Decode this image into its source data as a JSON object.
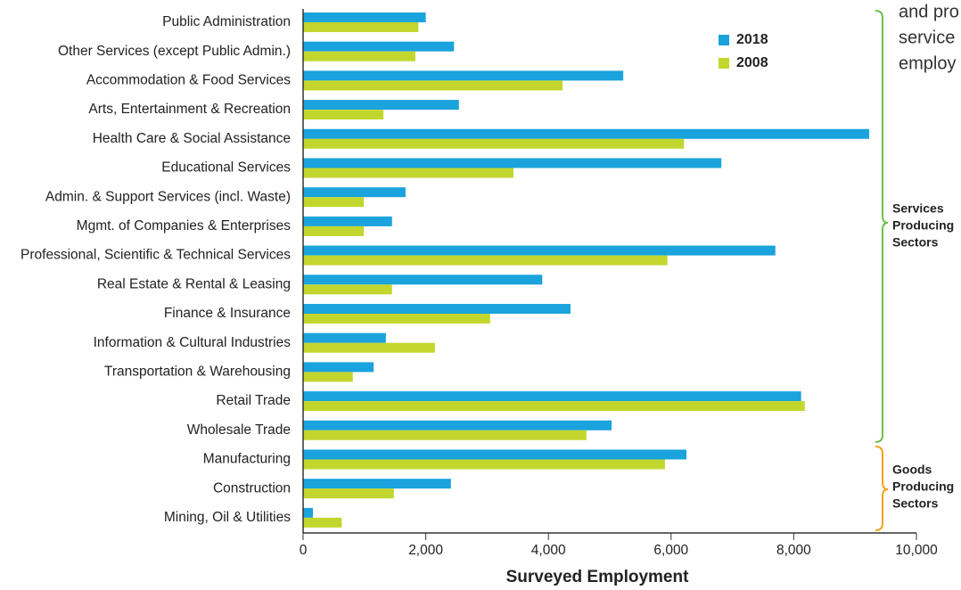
{
  "chart_data": {
    "type": "hbar",
    "categories": [
      "Public Administration",
      "Other Services (except Public Admin.)",
      "Accommodation & Food Services",
      "Arts, Entertainment & Recreation",
      "Health Care & Social Assistance",
      "Educational Services",
      "Admin. & Support Services (incl. Waste)",
      "Mgmt. of Companies & Enterprises",
      "Professional, Scientific & Technical Services",
      "Real Estate & Rental & Leasing",
      "Finance & Insurance",
      "Information & Cultural Industries",
      "Transportation & Warehousing",
      "Retail Trade",
      "Wholesale Trade",
      "Manufacturing",
      "Construction",
      "Mining, Oil & Utilities"
    ],
    "series": [
      {
        "name": "2018",
        "color": "#1aa3dc",
        "values": [
          2000,
          2460,
          5220,
          2540,
          9230,
          6820,
          1670,
          1450,
          7700,
          3900,
          4360,
          1350,
          1150,
          8120,
          5030,
          6250,
          2410,
          160
        ]
      },
      {
        "name": "2008",
        "color": "#c3d62d",
        "values": [
          1880,
          1830,
          4230,
          1310,
          6210,
          3430,
          990,
          990,
          5940,
          1450,
          3050,
          2150,
          810,
          8180,
          4620,
          5900,
          1480,
          630
        ]
      }
    ],
    "xlabel": "Surveyed Employment",
    "xlim": [
      0,
      10000
    ],
    "xticks": [
      0,
      {
        "value": 2000,
        "label": "2,000"
      },
      {
        "value": 4000,
        "label": "4,000"
      },
      {
        "value": 6000,
        "label": "6,000"
      },
      {
        "value": 8000,
        "label": "8,000"
      },
      {
        "value": 10000,
        "label": "10,000"
      }
    ],
    "annotation": [
      "and pro",
      "service",
      "employ"
    ],
    "groups": [
      {
        "label": [
          "Services",
          "Producing",
          "Sectors"
        ],
        "color": "#6cbf4a"
      },
      {
        "label": [
          "Goods",
          "Producing",
          "Sectors"
        ],
        "color": "#f2a31b"
      }
    ]
  }
}
